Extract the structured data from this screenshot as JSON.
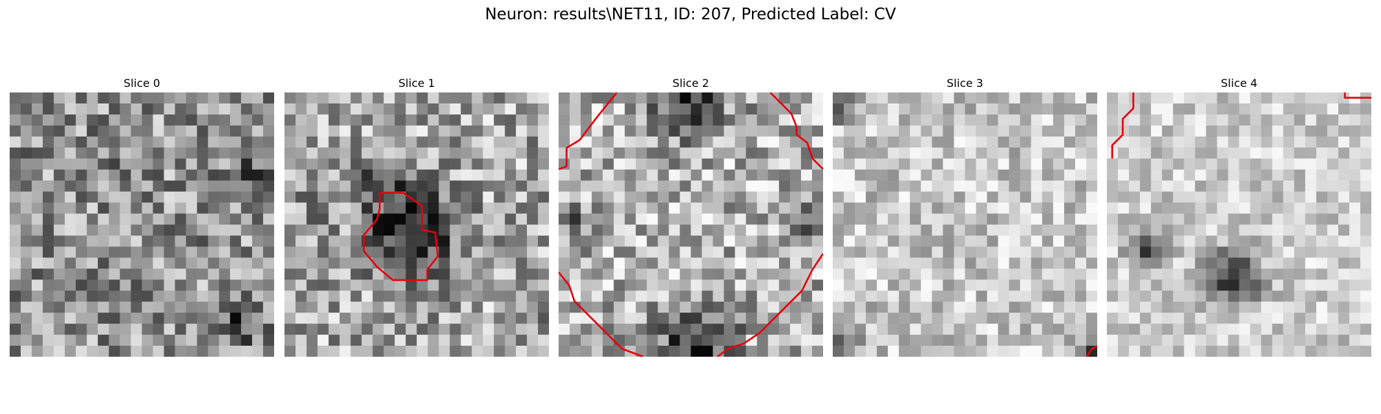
{
  "figure": {
    "title": "Neuron: results\\NET11, ID: 207, Predicted Label: CV"
  },
  "slices": [
    {
      "label": "Slice 0",
      "seed": 11,
      "base": 0.58,
      "noise": 0.3,
      "spots": [
        [
          0.93,
          0.33,
          0.1,
          0.3
        ],
        [
          0.88,
          0.86,
          0.09,
          0.35
        ],
        [
          0.35,
          0.28,
          0.1,
          0.1
        ]
      ],
      "contour": []
    },
    {
      "label": "Slice 1",
      "seed": 23,
      "base": 0.66,
      "noise": 0.3,
      "spots": [
        [
          0.47,
          0.52,
          0.17,
          0.55
        ],
        [
          0.37,
          0.32,
          0.08,
          0.25
        ],
        [
          0.12,
          0.43,
          0.06,
          0.25
        ],
        [
          0.95,
          0.8,
          0.06,
          0.35
        ]
      ],
      "contour": [
        [
          0.36,
          0.38
        ],
        [
          0.45,
          0.38
        ],
        [
          0.52,
          0.43
        ],
        [
          0.52,
          0.52
        ],
        [
          0.57,
          0.53
        ],
        [
          0.58,
          0.62
        ],
        [
          0.54,
          0.67
        ],
        [
          0.54,
          0.71
        ],
        [
          0.41,
          0.71
        ],
        [
          0.35,
          0.66
        ],
        [
          0.3,
          0.6
        ],
        [
          0.3,
          0.54
        ],
        [
          0.35,
          0.48
        ],
        [
          0.36,
          0.44
        ],
        [
          0.36,
          0.38
        ]
      ]
    },
    {
      "label": "Slice 2",
      "seed": 37,
      "base": 0.7,
      "noise": 0.3,
      "spots": [
        [
          0.5,
          0.03,
          0.14,
          0.45
        ],
        [
          0.5,
          0.97,
          0.14,
          0.45
        ],
        [
          0.05,
          0.5,
          0.08,
          0.25
        ],
        [
          0.95,
          0.5,
          0.08,
          0.25
        ],
        [
          0.62,
          0.92,
          0.06,
          0.35
        ]
      ],
      "contour": []
    },
    {
      "label": "Slice 3",
      "seed": 53,
      "base": 0.78,
      "noise": 0.22,
      "spots": [
        [
          0.03,
          0.06,
          0.06,
          0.35
        ],
        [
          0.05,
          0.93,
          0.08,
          0.3
        ],
        [
          0.98,
          0.99,
          0.04,
          0.5
        ]
      ],
      "contour": []
    },
    {
      "label": "Slice 4",
      "seed": 71,
      "base": 0.8,
      "noise": 0.18,
      "spots": [
        [
          0.48,
          0.7,
          0.1,
          0.65
        ],
        [
          0.15,
          0.6,
          0.07,
          0.45
        ]
      ],
      "contour": []
    }
  ]
}
